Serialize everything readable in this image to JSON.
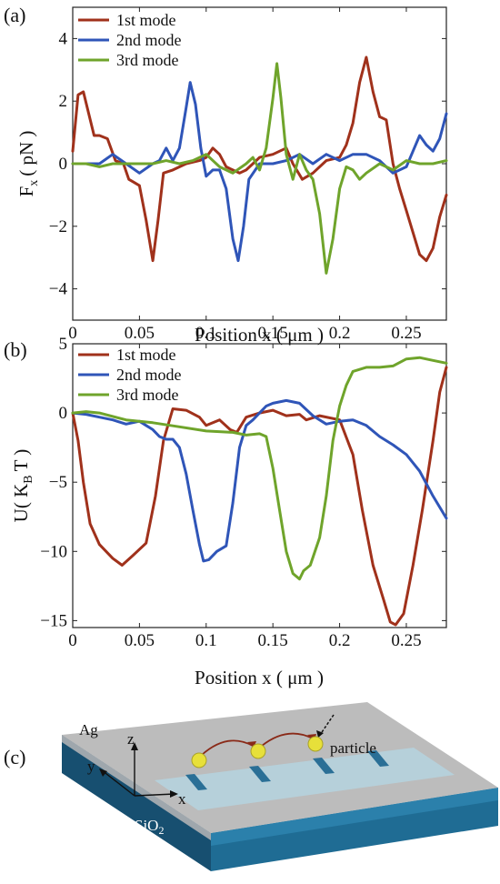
{
  "panels": {
    "a": {
      "label": "(a)"
    },
    "b": {
      "label": "(b)"
    },
    "c": {
      "label": "(c)"
    }
  },
  "chart_data": [
    {
      "type": "line",
      "xlabel": "Position x ( μm )",
      "ylabel": "F_x ( pN )",
      "ylabel_main": "F",
      "ylabel_sub": "x",
      "ylabel_rest": "( pN )",
      "xlim": [
        0,
        0.28
      ],
      "ylim": [
        -5,
        5
      ],
      "xticks": [
        0,
        0.05,
        0.1,
        0.15,
        0.2,
        0.25
      ],
      "xtick_labels": [
        "0",
        "0.05",
        "0.1",
        "0.15",
        "0.2",
        "0.25"
      ],
      "yticks": [
        -4,
        -2,
        0,
        2,
        4
      ],
      "ytick_labels": [
        "-4",
        "-2",
        "0",
        "2",
        "4"
      ],
      "legend": "top-left",
      "series": [
        {
          "name": "1st mode",
          "color": "#A0311B",
          "x": [
            0,
            0.004,
            0.008,
            0.012,
            0.016,
            0.02,
            0.026,
            0.032,
            0.038,
            0.042,
            0.046,
            0.05,
            0.055,
            0.06,
            0.064,
            0.068,
            0.075,
            0.085,
            0.095,
            0.1,
            0.105,
            0.11,
            0.115,
            0.12,
            0.125,
            0.13,
            0.135,
            0.14,
            0.15,
            0.16,
            0.165,
            0.172,
            0.18,
            0.19,
            0.2,
            0.205,
            0.21,
            0.215,
            0.22,
            0.225,
            0.23,
            0.235,
            0.24,
            0.245,
            0.25,
            0.255,
            0.26,
            0.265,
            0.27,
            0.275,
            0.28
          ],
          "y": [
            0.4,
            2.2,
            2.3,
            1.6,
            0.9,
            0.9,
            0.8,
            0.1,
            0,
            -0.5,
            -0.6,
            -0.7,
            -1.8,
            -3.1,
            -1.8,
            -0.3,
            -0.2,
            0,
            0.1,
            0.2,
            0.5,
            0.3,
            -0.1,
            -0.2,
            -0.3,
            -0.2,
            0,
            0.2,
            0.3,
            0.5,
            0,
            -0.5,
            -0.3,
            0.1,
            0.2,
            0.6,
            1.3,
            2.6,
            3.4,
            2.3,
            1.5,
            1.4,
            0,
            -0.8,
            -1.5,
            -2.2,
            -2.9,
            -3.1,
            -2.7,
            -1.7,
            -1.0
          ]
        },
        {
          "name": "2nd mode",
          "color": "#2F55B8",
          "x": [
            0,
            0.01,
            0.02,
            0.03,
            0.04,
            0.05,
            0.06,
            0.065,
            0.07,
            0.075,
            0.08,
            0.085,
            0.088,
            0.092,
            0.096,
            0.1,
            0.105,
            0.11,
            0.115,
            0.12,
            0.124,
            0.128,
            0.132,
            0.14,
            0.15,
            0.16,
            0.17,
            0.18,
            0.19,
            0.2,
            0.21,
            0.22,
            0.23,
            0.24,
            0.25,
            0.255,
            0.26,
            0.265,
            0.27,
            0.275,
            0.28
          ],
          "y": [
            0,
            0,
            0,
            0.3,
            0,
            -0.3,
            0,
            0.1,
            0.5,
            0.1,
            0.5,
            1.8,
            2.6,
            1.9,
            0.5,
            -0.4,
            -0.2,
            -0.2,
            -0.8,
            -2.4,
            -3.1,
            -2,
            -0.5,
            0,
            0,
            0.1,
            0.3,
            0,
            0.3,
            0.1,
            0.3,
            0.3,
            0.1,
            -0.3,
            -0.1,
            0.4,
            0.9,
            0.6,
            0.4,
            0.8,
            1.6
          ]
        },
        {
          "name": "3rd mode",
          "color": "#6FA42B",
          "x": [
            0,
            0.01,
            0.02,
            0.03,
            0.04,
            0.05,
            0.06,
            0.07,
            0.08,
            0.09,
            0.1,
            0.11,
            0.12,
            0.13,
            0.135,
            0.14,
            0.145,
            0.15,
            0.153,
            0.156,
            0.16,
            0.165,
            0.17,
            0.175,
            0.18,
            0.185,
            0.19,
            0.195,
            0.2,
            0.205,
            0.21,
            0.215,
            0.22,
            0.23,
            0.24,
            0.25,
            0.26,
            0.27,
            0.28
          ],
          "y": [
            0,
            0,
            -0.1,
            0,
            0,
            0,
            0,
            0.1,
            0,
            0.1,
            0.3,
            -0.1,
            -0.3,
            0,
            0.2,
            -0.2,
            0.5,
            2.1,
            3.2,
            2.1,
            0.3,
            -0.5,
            0.3,
            -0.2,
            -0.5,
            -1.6,
            -3.5,
            -2.4,
            -0.8,
            -0.1,
            -0.2,
            -0.5,
            -0.3,
            0,
            -0.2,
            0.1,
            0,
            0,
            0.1
          ]
        }
      ]
    },
    {
      "type": "line",
      "xlabel": "Position x ( μm )",
      "ylabel": "U( K_B T )",
      "ylabel_main": "U( K",
      "ylabel_sub": "B",
      "ylabel_rest": "T )",
      "xlim": [
        0,
        0.28
      ],
      "ylim": [
        -15.5,
        5
      ],
      "xticks": [
        0,
        0.05,
        0.1,
        0.15,
        0.2,
        0.25
      ],
      "xtick_labels": [
        "0",
        "0.05",
        "0.1",
        "0.15",
        "0.2",
        "0.25"
      ],
      "yticks": [
        -15,
        -10,
        -5,
        0,
        5
      ],
      "ytick_labels": [
        "-15",
        "-10",
        "-5",
        "0",
        "5"
      ],
      "legend": "top-left",
      "series": [
        {
          "name": "1st mode",
          "color": "#A0311B",
          "x": [
            0,
            0.004,
            0.008,
            0.013,
            0.02,
            0.03,
            0.037,
            0.045,
            0.055,
            0.062,
            0.068,
            0.075,
            0.085,
            0.095,
            0.1,
            0.11,
            0.118,
            0.123,
            0.13,
            0.14,
            0.15,
            0.16,
            0.17,
            0.175,
            0.185,
            0.2,
            0.21,
            0.217,
            0.225,
            0.233,
            0.238,
            0.242,
            0.248,
            0.255,
            0.262,
            0.27,
            0.275,
            0.28
          ],
          "y": [
            0,
            -2,
            -5,
            -8,
            -9.5,
            -10.5,
            -11,
            -10.3,
            -9.4,
            -6,
            -2,
            0.3,
            0.2,
            -0.3,
            -0.9,
            -0.5,
            -1.2,
            -1.4,
            -0.3,
            0,
            0.2,
            -0.2,
            -0.1,
            -0.5,
            -0.2,
            -0.5,
            -3,
            -7,
            -11,
            -13.5,
            -15.1,
            -15.3,
            -14.5,
            -11,
            -7,
            -2,
            1.5,
            3.3
          ]
        },
        {
          "name": "2nd mode",
          "color": "#2F55B8",
          "x": [
            0,
            0.01,
            0.02,
            0.03,
            0.04,
            0.05,
            0.055,
            0.06,
            0.065,
            0.07,
            0.075,
            0.08,
            0.085,
            0.09,
            0.095,
            0.098,
            0.102,
            0.108,
            0.115,
            0.12,
            0.125,
            0.13,
            0.135,
            0.14,
            0.145,
            0.15,
            0.16,
            0.17,
            0.18,
            0.19,
            0.2,
            0.21,
            0.22,
            0.23,
            0.24,
            0.25,
            0.26,
            0.27,
            0.28
          ],
          "y": [
            0,
            -0.1,
            -0.3,
            -0.5,
            -0.8,
            -0.6,
            -0.9,
            -1.2,
            -1.7,
            -1.9,
            -1.9,
            -2.5,
            -4.4,
            -7,
            -9.5,
            -10.7,
            -10.6,
            -10,
            -9.6,
            -6.5,
            -2.5,
            -0.9,
            -0.5,
            0,
            0.5,
            0.7,
            0.9,
            0.7,
            -0.2,
            -0.8,
            -0.6,
            -0.5,
            -0.9,
            -1.7,
            -2.3,
            -3,
            -4.2,
            -6,
            -7.6
          ]
        },
        {
          "name": "3rd mode",
          "color": "#6FA42B",
          "x": [
            0,
            0.01,
            0.02,
            0.04,
            0.06,
            0.08,
            0.1,
            0.12,
            0.13,
            0.14,
            0.145,
            0.15,
            0.155,
            0.16,
            0.165,
            0.17,
            0.173,
            0.178,
            0.185,
            0.19,
            0.195,
            0.2,
            0.205,
            0.21,
            0.22,
            0.23,
            0.24,
            0.25,
            0.26,
            0.27,
            0.28
          ],
          "y": [
            0,
            0.1,
            0,
            -0.5,
            -0.7,
            -1,
            -1.3,
            -1.4,
            -1.6,
            -1.5,
            -1.7,
            -4,
            -7,
            -10,
            -11.6,
            -12,
            -11.4,
            -11,
            -9,
            -6,
            -2,
            0.5,
            2,
            3,
            3.3,
            3.3,
            3.4,
            3.9,
            4,
            3.8,
            3.6
          ]
        }
      ]
    }
  ],
  "diagram": {
    "substrate_label": "Ag",
    "oxide_label": "SiO",
    "oxide_sub": "2",
    "axis_z": "z",
    "axis_y": "y",
    "axis_x": "x",
    "particle_label": "particle",
    "colors": {
      "ag_top": "#bcbcbc",
      "si_front": "#1f6c94",
      "si_side": "#174f70",
      "particle": "#e7e03a"
    }
  }
}
